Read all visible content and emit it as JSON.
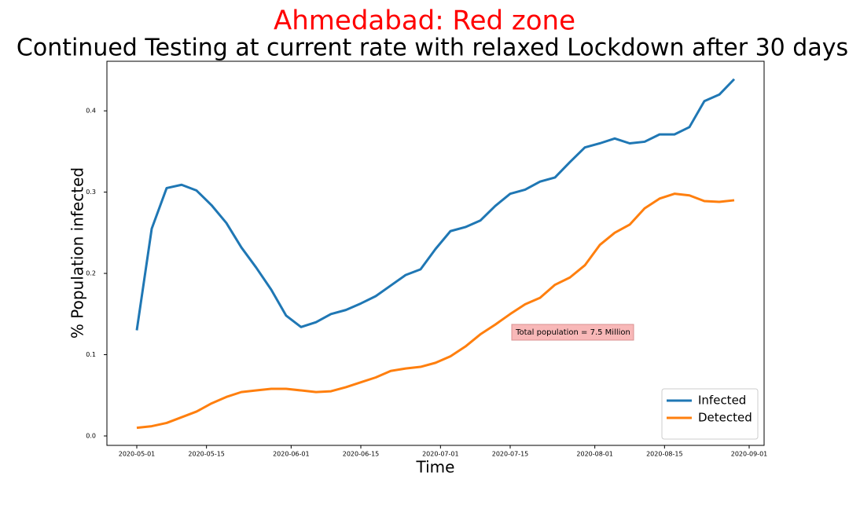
{
  "chart_data": {
    "type": "line",
    "title": "Ahmedabad: Red zone",
    "title_color": "#ff0000",
    "subtitle": "Continued Testing at current rate with relaxed Lockdown after 30 days",
    "x_label": "Time",
    "y_label": "% Population infected",
    "annotation": "Total population = 7.5 Million",
    "x": [
      "2020-05-01",
      "2020-05-04",
      "2020-05-07",
      "2020-05-10",
      "2020-05-13",
      "2020-05-16",
      "2020-05-19",
      "2020-05-22",
      "2020-05-25",
      "2020-05-28",
      "2020-05-31",
      "2020-06-03",
      "2020-06-06",
      "2020-06-09",
      "2020-06-12",
      "2020-06-15",
      "2020-06-18",
      "2020-06-21",
      "2020-06-24",
      "2020-06-27",
      "2020-06-30",
      "2020-07-03",
      "2020-07-06",
      "2020-07-09",
      "2020-07-12",
      "2020-07-15",
      "2020-07-18",
      "2020-07-21",
      "2020-07-24",
      "2020-07-27",
      "2020-07-30",
      "2020-08-02",
      "2020-08-05",
      "2020-08-08",
      "2020-08-11",
      "2020-08-14",
      "2020-08-17",
      "2020-08-20",
      "2020-08-23",
      "2020-08-26",
      "2020-08-29"
    ],
    "series": [
      {
        "name": "Infected",
        "color": "#1f77b4",
        "values": [
          0.13,
          0.255,
          0.305,
          0.309,
          0.302,
          0.284,
          0.262,
          0.232,
          0.207,
          0.18,
          0.148,
          0.134,
          0.14,
          0.15,
          0.155,
          0.163,
          0.172,
          0.185,
          0.198,
          0.205,
          0.23,
          0.252,
          0.257,
          0.265,
          0.283,
          0.298,
          0.303,
          0.313,
          0.318,
          0.337,
          0.355,
          0.36,
          0.366,
          0.36,
          0.362,
          0.371,
          0.371,
          0.38,
          0.412,
          0.42,
          0.439
        ]
      },
      {
        "name": "Detected",
        "color": "#ff7f0e",
        "values": [
          0.01,
          0.012,
          0.016,
          0.023,
          0.03,
          0.04,
          0.048,
          0.054,
          0.056,
          0.058,
          0.058,
          0.056,
          0.054,
          0.055,
          0.06,
          0.066,
          0.072,
          0.08,
          0.083,
          0.085,
          0.09,
          0.098,
          0.11,
          0.125,
          0.137,
          0.15,
          0.162,
          0.17,
          0.186,
          0.195,
          0.21,
          0.235,
          0.25,
          0.26,
          0.28,
          0.292,
          0.298,
          0.296,
          0.289,
          0.288,
          0.29
        ]
      }
    ],
    "xlim": [
      "2020-04-25",
      "2020-09-04"
    ],
    "xticks": [
      "2020-05-01",
      "2020-05-15",
      "2020-06-01",
      "2020-06-15",
      "2020-07-01",
      "2020-07-15",
      "2020-08-01",
      "2020-08-15",
      "2020-09-01"
    ],
    "ylim": [
      -0.0116,
      0.461
    ],
    "yticks": [
      {
        "value": 0,
        "label": "0.0"
      },
      0.1,
      0.2,
      0.3,
      0.4
    ],
    "grid": false,
    "legend": "lower right"
  }
}
